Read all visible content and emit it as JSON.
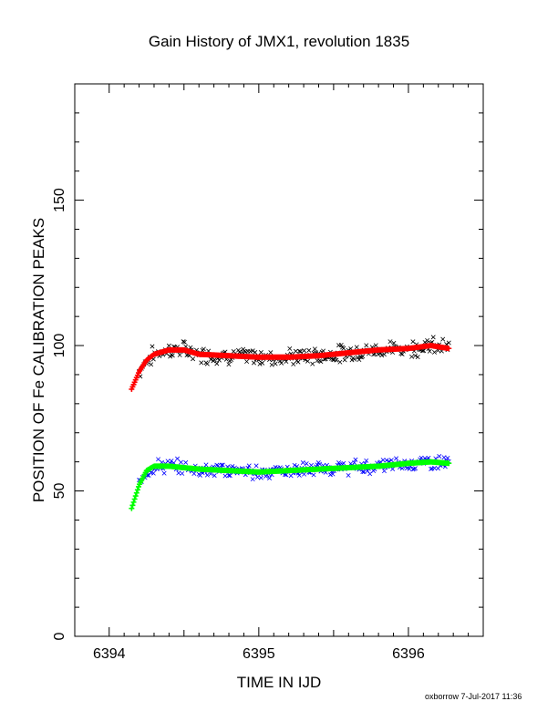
{
  "chart_data": {
    "type": "scatter",
    "title": "Gain History of JMX1, revolution 1835",
    "xlabel": "TIME IN IJD",
    "ylabel": "POSITION OF Fe CALIBRATION PEAKS",
    "xlim": [
      6393.77,
      6396.5
    ],
    "ylim": [
      0,
      190
    ],
    "x_ticks": [
      6394,
      6395,
      6396
    ],
    "y_ticks": [
      0,
      50,
      100,
      150
    ],
    "grid": false,
    "colors": {
      "upper_fit": "#ff0000",
      "upper_points": "#000000",
      "lower_fit": "#00ff00",
      "lower_points": "#0000ff",
      "frame": "#000000"
    },
    "fits": [
      {
        "color": "#ff0000",
        "x": [
          6394.15,
          6394.2,
          6394.25,
          6394.3,
          6394.4,
          6394.5,
          6394.6,
          6394.8,
          6395.0,
          6395.2,
          6395.4,
          6395.6,
          6395.8,
          6396.0,
          6396.15,
          6396.27
        ],
        "y": [
          85,
          91,
          95,
          97,
          98.5,
          98.5,
          97,
          96.5,
          96,
          96,
          96.5,
          97.5,
          98.5,
          99,
          100,
          99
        ]
      },
      {
        "color": "#00ff00",
        "x": [
          6394.15,
          6394.2,
          6394.25,
          6394.3,
          6394.4,
          6394.5,
          6394.6,
          6394.8,
          6395.0,
          6395.2,
          6395.4,
          6395.6,
          6395.8,
          6396.0,
          6396.15,
          6396.27
        ],
        "y": [
          44,
          52,
          57,
          58.5,
          58.5,
          58,
          57.5,
          57,
          56.5,
          57,
          57.5,
          58,
          58.5,
          59.5,
          60,
          59.5
        ]
      }
    ],
    "points": [
      {
        "color": "#000000",
        "spread": 3.5,
        "x_range": [
          6394.2,
          6396.27
        ],
        "mean_from_fit": 0
      },
      {
        "color": "#0000ff",
        "spread": 3.0,
        "x_range": [
          6394.2,
          6396.27
        ],
        "mean_from_fit": 1
      }
    ]
  },
  "footer": "oxborrow  7-Jul-2017 11:36"
}
